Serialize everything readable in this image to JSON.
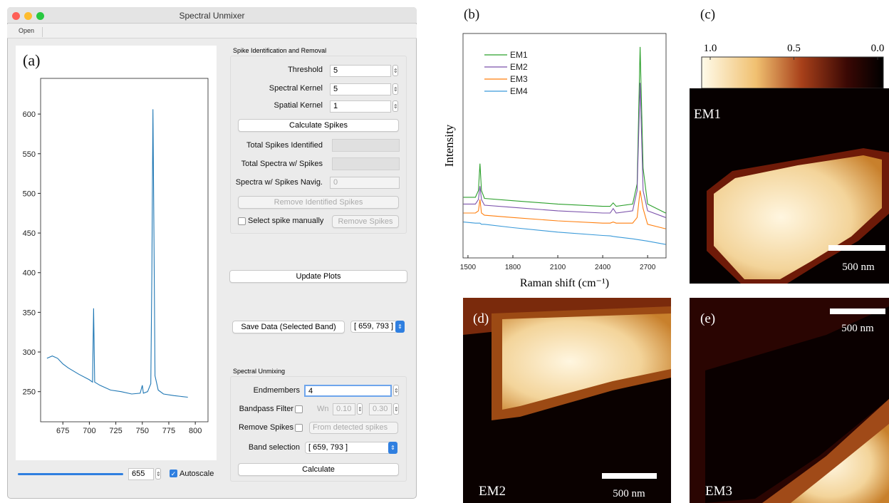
{
  "window": {
    "title": "Spectral Unmixer",
    "menu": [
      "Open"
    ]
  },
  "panel_labels": [
    "(a)",
    "(b)",
    "(c)",
    "(d)",
    "(e)"
  ],
  "spike": {
    "heading": "Spike Identification and Removal",
    "fields": [
      {
        "label": "Threshold",
        "value": "5"
      },
      {
        "label": "Spectral Kernel",
        "value": "5"
      },
      {
        "label": "Spatial Kernel",
        "value": "1"
      }
    ],
    "calculate": "Calculate Spikes",
    "stats": [
      "Total Spikes Identified",
      "Total Spectra w/ Spikes",
      "Spectra w/ Spikes Navig."
    ],
    "navig_value": "0",
    "remove_identified": "Remove Identified Spikes",
    "select_manual": "Select spike manually",
    "remove_spikes": "Remove Spikes"
  },
  "update": "Update Plots",
  "save": {
    "button": "Save Data (Selected Band)",
    "band": "[ 659, 793 ]"
  },
  "unmixing": {
    "heading": "Spectral Unmixing",
    "endmembers": {
      "label": "Endmembers",
      "value": "4"
    },
    "bandpass": {
      "label": "Bandpass Filter",
      "wn": "Wn",
      "low": "0.10",
      "high": "0.30"
    },
    "remove": {
      "label": "Remove Spikes",
      "option": "From detected spikes"
    },
    "band": {
      "label": "Band selection",
      "value": "[ 659, 793 ]"
    },
    "calculate": "Calculate"
  },
  "slider": {
    "value": "655",
    "autoscale": "Autoscale"
  },
  "chart_data": [
    {
      "type": "line",
      "color": "#1f77b4",
      "x": [
        660,
        665,
        670,
        675,
        680,
        690,
        700,
        703,
        704,
        705,
        710,
        720,
        730,
        740,
        748,
        750,
        751,
        755,
        758,
        759,
        760,
        761,
        762,
        765,
        770,
        780,
        793
      ],
      "values": [
        292,
        295,
        292,
        285,
        280,
        272,
        265,
        262,
        355,
        262,
        258,
        252,
        250,
        247,
        248,
        258,
        248,
        250,
        260,
        400,
        606,
        450,
        270,
        252,
        247,
        245,
        243
      ],
      "xlim": [
        654,
        812
      ],
      "ylim": [
        212,
        645
      ],
      "xticks": [
        675,
        700,
        725,
        750,
        775,
        800
      ],
      "yticks": [
        250,
        300,
        350,
        400,
        450,
        500,
        550,
        600
      ]
    },
    {
      "type": "line",
      "xlabel": "Raman shift (cm⁻¹)",
      "ylabel": "Intensity",
      "x": [
        1470,
        1550,
        1570,
        1580,
        1590,
        1610,
        1800,
        2100,
        2400,
        2450,
        2470,
        2490,
        2600,
        2630,
        2650,
        2670,
        2700,
        2820
      ],
      "series": [
        {
          "name": "EM1",
          "color": "#2ca02c",
          "values": [
            27,
            27,
            30,
            42,
            30,
            26.5,
            25.5,
            24,
            23,
            23,
            24.5,
            23,
            24,
            33,
            94,
            40,
            24,
            20
          ]
        },
        {
          "name": "EM2",
          "color": "#7b52ab",
          "values": [
            24,
            24,
            26,
            32,
            26,
            23.5,
            22.5,
            21,
            20,
            20,
            22,
            20,
            21,
            30,
            78,
            30,
            21,
            18
          ]
        },
        {
          "name": "EM3",
          "color": "#ff7f0e",
          "values": [
            20,
            20,
            21,
            26,
            20,
            19,
            18,
            16.5,
            15.5,
            15.5,
            16,
            15.5,
            15.5,
            18,
            30,
            22,
            15,
            13
          ]
        },
        {
          "name": "EM4",
          "color": "#3a9ad9",
          "values": [
            16,
            15.5,
            15.5,
            15.5,
            15,
            15,
            13.5,
            11.5,
            10,
            9.8,
            9.6,
            9.4,
            8.5,
            8.2,
            8,
            7.8,
            7.5,
            6
          ]
        }
      ],
      "xlim": [
        1467,
        2823
      ],
      "ylim": [
        0,
        100
      ],
      "xticks": [
        1500,
        1800,
        2100,
        2400,
        2700
      ],
      "legend": "upper left"
    }
  ],
  "maps": {
    "colorbar": {
      "lim": [
        1,
        0
      ],
      "ticks": [
        {
          "value": 1,
          "label": "1.0"
        },
        0.5,
        {
          "value": 0,
          "label": "0.0"
        }
      ]
    },
    "labels": [
      "EM1",
      "EM2",
      "EM3"
    ],
    "scale_bar": "500 nm"
  }
}
